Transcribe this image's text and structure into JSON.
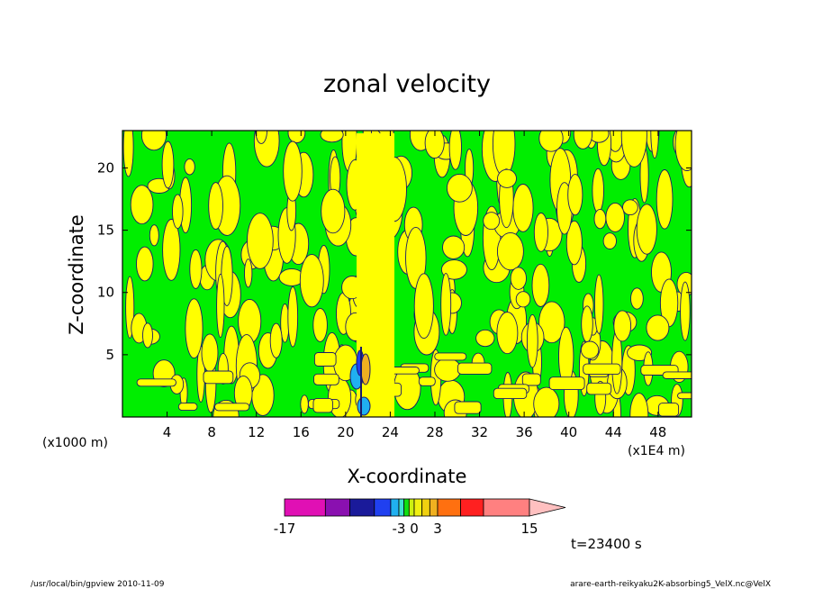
{
  "chart_data": {
    "type": "heatmap",
    "title": "zonal velocity",
    "xlabel": "X-coordinate",
    "ylabel": "Z-coordinate",
    "x_unit_left": "(x1000 m)",
    "x_unit_right": "(x1E4 m)",
    "x_ticks": [
      4,
      8,
      12,
      16,
      20,
      24,
      28,
      32,
      36,
      40,
      44,
      48
    ],
    "y_ticks": [
      5,
      10,
      15,
      20
    ],
    "xlim": [
      0,
      51
    ],
    "ylim": [
      0,
      23
    ],
    "colorbar": {
      "tick_labels": [
        "-17",
        "-3",
        "0",
        "3",
        "15"
      ],
      "bands": [
        {
          "from": -17,
          "to": -12,
          "color": "#e010b4"
        },
        {
          "from": -12,
          "to": -9,
          "color": "#8a10b0"
        },
        {
          "from": -9,
          "to": -6,
          "color": "#1a1a9a"
        },
        {
          "from": -6,
          "to": -4,
          "color": "#2040f0"
        },
        {
          "from": -4,
          "to": -3,
          "color": "#20b0f0"
        },
        {
          "from": -3,
          "to": -2,
          "color": "#40e0d0"
        },
        {
          "from": -2,
          "to": -1,
          "color": "#10e010"
        },
        {
          "from": -1,
          "to": 0,
          "color": "#ccf010"
        },
        {
          "from": 0,
          "to": 1,
          "color": "#f0f010"
        },
        {
          "from": 1,
          "to": 2,
          "color": "#f0d010"
        },
        {
          "from": 2,
          "to": 3,
          "color": "#f0b020"
        },
        {
          "from": 3,
          "to": 6,
          "color": "#ff7010"
        },
        {
          "from": 6,
          "to": 9,
          "color": "#ff2020"
        },
        {
          "from": 9,
          "to": 15,
          "color": "#ff8080"
        },
        {
          "from": 15,
          "to": 17,
          "color": "#ffc0c0"
        }
      ]
    },
    "field_colors": {
      "negative": "#00ee00",
      "positive": "#ffff00",
      "contour": "#1a1a6a"
    },
    "time_label": "t=23400 s"
  },
  "footer": {
    "left": "/usr/local/bin/gpview  2010-11-09",
    "right": "arare-earth-reikyaku2K-absorbing5_VelX.nc@VelX"
  }
}
